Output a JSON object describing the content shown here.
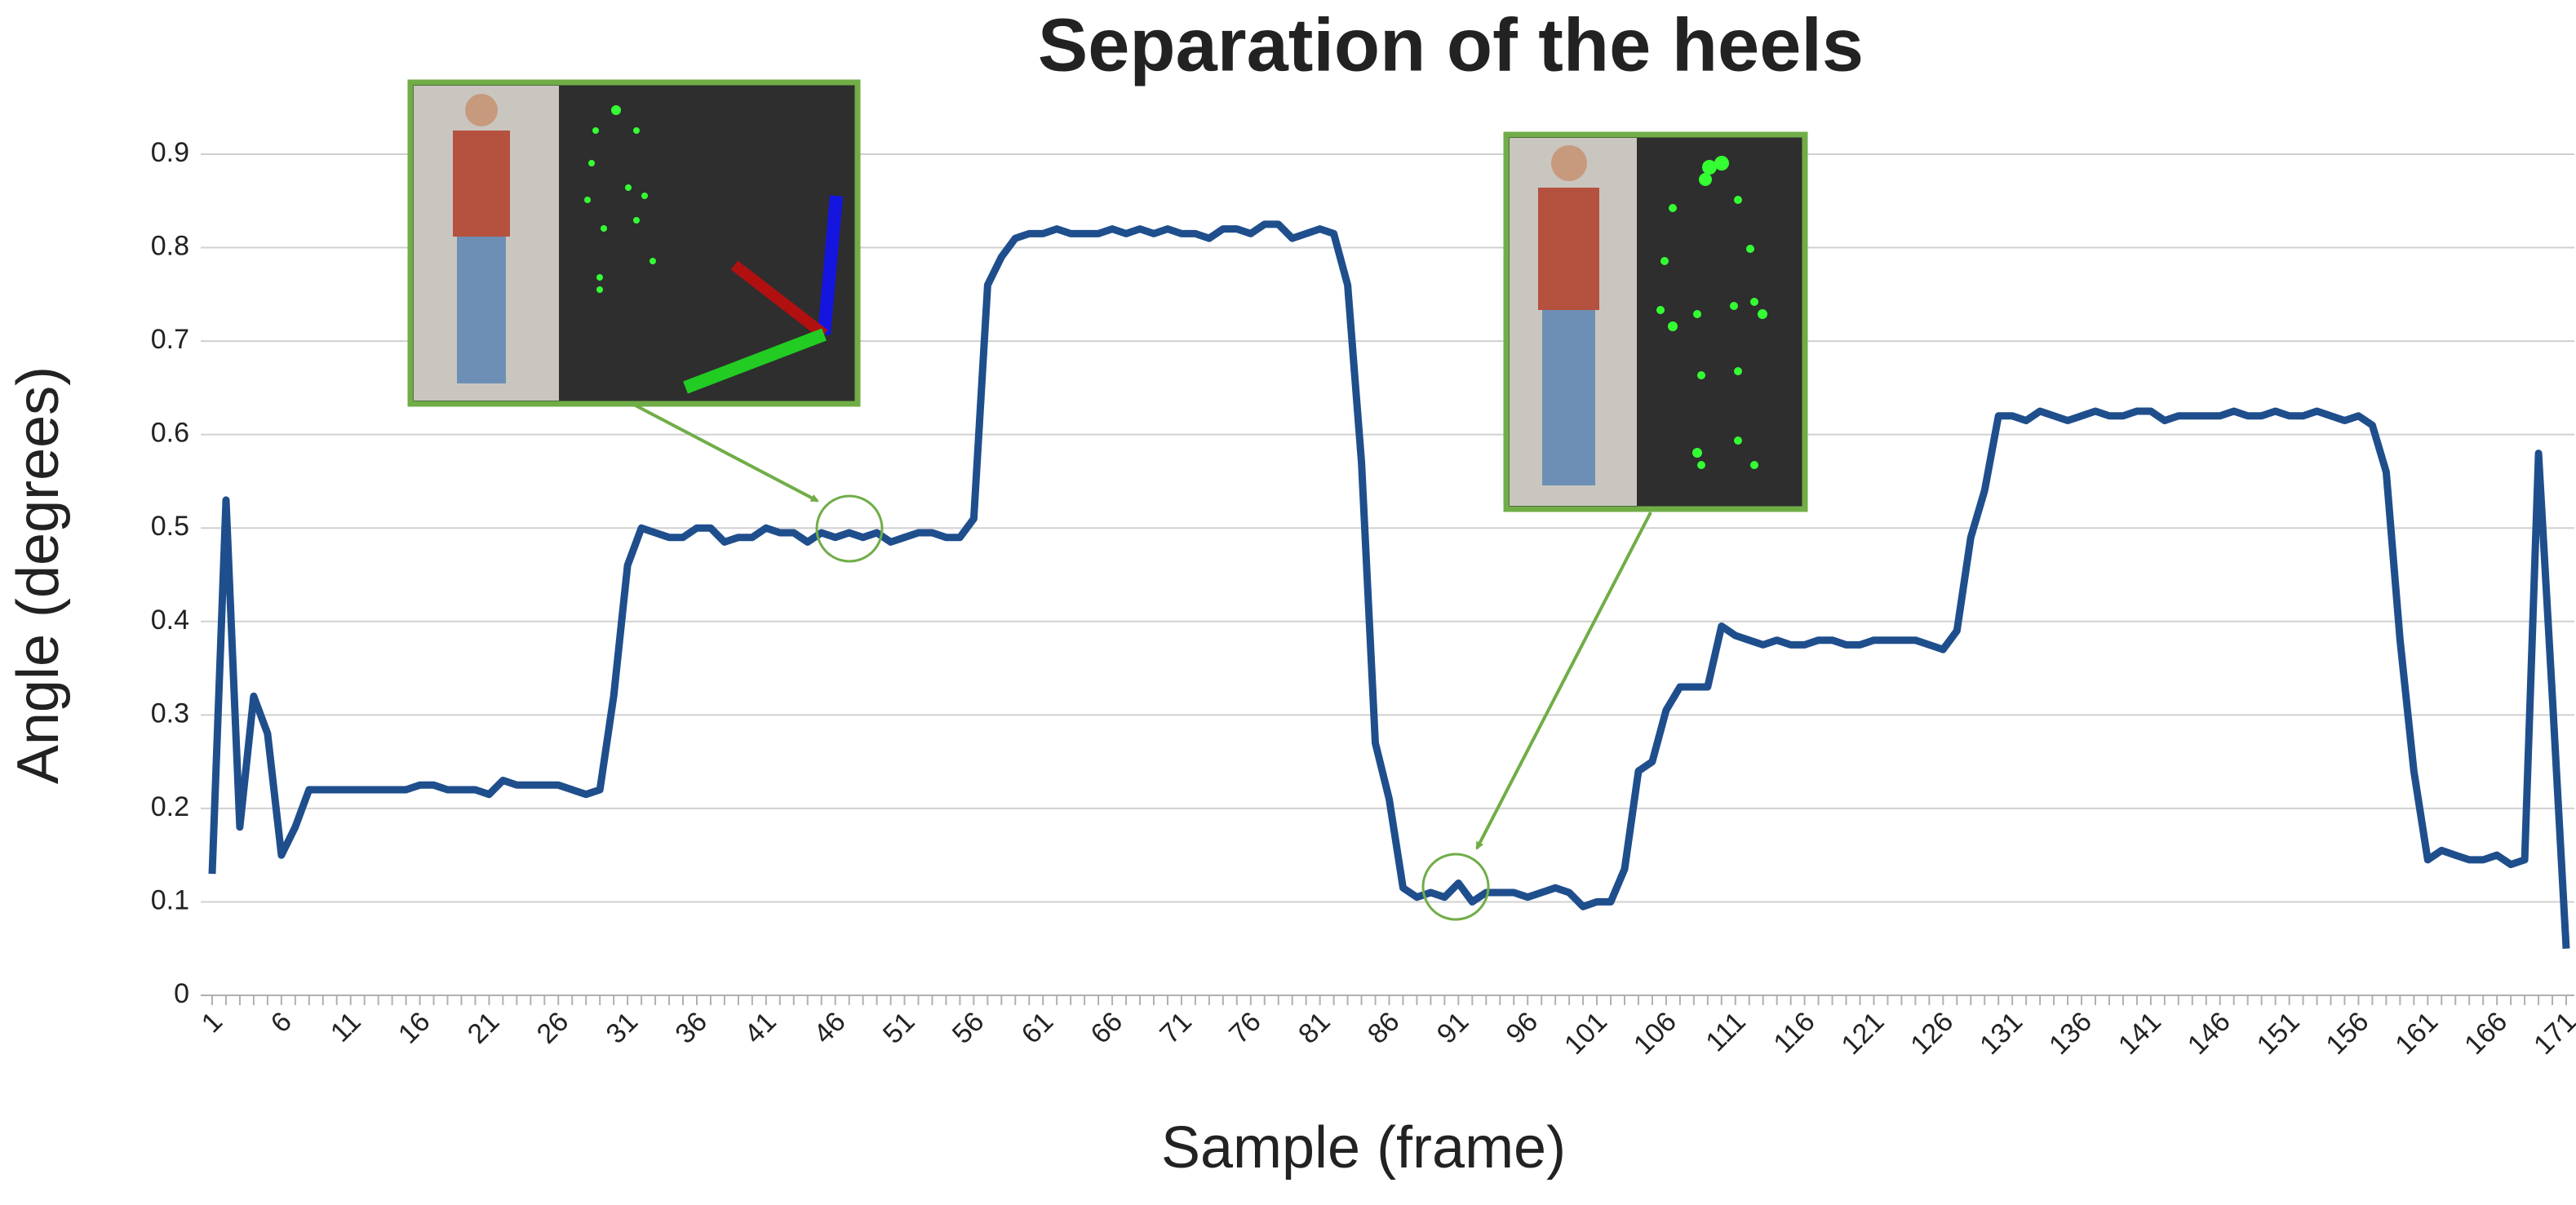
{
  "chart_data": {
    "type": "line",
    "title": "Separation of the heels",
    "x_label": "Sample (frame)",
    "y_label": "Angle (degrees)",
    "categories": [
      "1",
      null,
      null,
      null,
      null,
      "6",
      null,
      null,
      null,
      null,
      "11",
      null,
      null,
      null,
      null,
      "16",
      null,
      null,
      null,
      null,
      "21",
      null,
      null,
      null,
      null,
      "26",
      null,
      null,
      null,
      null,
      "31",
      null,
      null,
      null,
      null,
      "36",
      null,
      null,
      null,
      null,
      "41",
      null,
      null,
      null,
      null,
      "46",
      null,
      null,
      null,
      null,
      "51",
      null,
      null,
      null,
      null,
      "56",
      null,
      null,
      null,
      null,
      "61",
      null,
      null,
      null,
      null,
      "66",
      null,
      null,
      null,
      null,
      "71",
      null,
      null,
      null,
      null,
      "76",
      null,
      null,
      null,
      null,
      "81",
      null,
      null,
      null,
      null,
      "86",
      null,
      null,
      null,
      null,
      "91",
      null,
      null,
      null,
      null,
      "96",
      null,
      null,
      null,
      null,
      "101",
      null,
      null,
      null,
      null,
      "106",
      null,
      null,
      null,
      null,
      "111",
      null,
      null,
      null,
      null,
      "116",
      null,
      null,
      null,
      null,
      "121",
      null,
      null,
      null,
      null,
      "126",
      null,
      null,
      null,
      null,
      "131",
      null,
      null,
      null,
      null,
      "136",
      null,
      null,
      null,
      null,
      "141",
      null,
      null,
      null,
      null,
      "146",
      null,
      null,
      null,
      null,
      "151",
      null,
      null,
      null,
      null,
      "156",
      null,
      null,
      null,
      null,
      "161",
      null,
      null,
      null,
      null,
      "166",
      null,
      null,
      null,
      null,
      "171"
    ],
    "values": [
      0.13,
      0.53,
      0.18,
      0.32,
      0.28,
      0.15,
      0.18,
      0.22,
      0.22,
      0.22,
      0.22,
      0.22,
      0.22,
      0.22,
      0.22,
      0.225,
      0.225,
      0.22,
      0.22,
      0.22,
      0.215,
      0.23,
      0.225,
      0.225,
      0.225,
      0.225,
      0.22,
      0.215,
      0.22,
      0.32,
      0.46,
      0.5,
      0.495,
      0.49,
      0.49,
      0.5,
      0.5,
      0.485,
      0.49,
      0.49,
      0.5,
      0.495,
      0.495,
      0.485,
      0.495,
      0.49,
      0.495,
      0.49,
      0.495,
      0.485,
      0.49,
      0.495,
      0.495,
      0.49,
      0.49,
      0.51,
      0.76,
      0.79,
      0.81,
      0.815,
      0.815,
      0.82,
      0.815,
      0.815,
      0.815,
      0.82,
      0.815,
      0.82,
      0.815,
      0.82,
      0.815,
      0.815,
      0.81,
      0.82,
      0.82,
      0.815,
      0.825,
      0.825,
      0.81,
      0.815,
      0.82,
      0.815,
      0.76,
      0.57,
      0.27,
      0.21,
      0.115,
      0.105,
      0.11,
      0.105,
      0.12,
      0.1,
      0.11,
      0.11,
      0.11,
      0.105,
      0.11,
      0.115,
      0.11,
      0.095,
      0.1,
      0.1,
      0.135,
      0.24,
      0.25,
      0.305,
      0.33,
      0.33,
      0.33,
      0.395,
      0.385,
      0.38,
      0.375,
      0.38,
      0.375,
      0.375,
      0.38,
      0.38,
      0.375,
      0.375,
      0.38,
      0.38,
      0.38,
      0.38,
      0.375,
      0.37,
      0.39,
      0.49,
      0.54,
      0.62,
      0.62,
      0.615,
      0.625,
      0.62,
      0.615,
      0.62,
      0.625,
      0.62,
      0.62,
      0.625,
      0.625,
      0.615,
      0.62,
      0.62,
      0.62,
      0.62,
      0.625,
      0.62,
      0.62,
      0.625,
      0.62,
      0.62,
      0.625,
      0.62,
      0.615,
      0.62,
      0.61,
      0.56,
      0.38,
      0.24,
      0.145,
      0.155,
      0.15,
      0.145,
      0.145,
      0.15,
      0.14,
      0.145,
      0.58,
      0.32,
      0.05
    ],
    "color": "#1f4e8c",
    "ylim": [
      0,
      0.9
    ],
    "yticks": [
      0,
      0.1,
      0.2,
      0.3,
      0.4,
      0.5,
      0.6,
      0.7,
      0.8,
      0.9
    ],
    "grid": true
  }
}
